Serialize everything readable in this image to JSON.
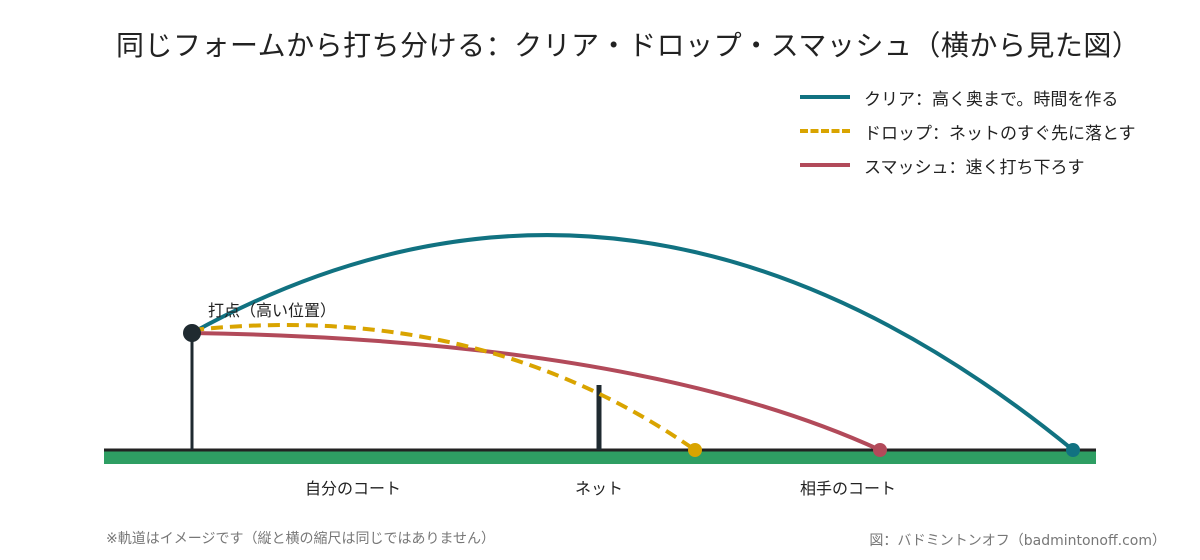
{
  "title": "同じフォームから打ち分ける：クリア・ドロップ・スマッシュ（横から見た図）",
  "legend": [
    {
      "label": "クリア：高く奥まで。時間を作る",
      "color": "#117281",
      "style": "solid"
    },
    {
      "label": "ドロップ：ネットのすぐ先に落とす",
      "color": "#d9a400",
      "style": "dashed"
    },
    {
      "label": "スマッシュ：速く打ち下ろす",
      "color": "#b24a5a",
      "style": "solid"
    }
  ],
  "labels": {
    "hit_point": "打点（高い位置）",
    "own_court": "自分のコート",
    "net": "ネット",
    "opponent_court": "相手のコート"
  },
  "footnote": "※軌道はイメージです（縦と横の縮尺は同じではありません）",
  "credit": "図：バドミントンオフ（badmintonoff.com）",
  "colors": {
    "clear": "#117281",
    "drop": "#d9a400",
    "smash": "#b24a5a",
    "court": "#2e9e63",
    "ground_line": "#222222",
    "posts": "#1f2a30"
  }
}
